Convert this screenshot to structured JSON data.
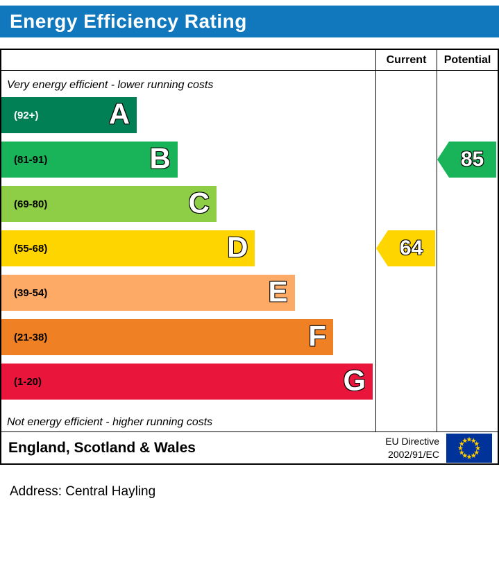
{
  "title": "Energy Efficiency Rating",
  "colors": {
    "header_bar": "#1278be",
    "eu_flag_blue": "#003399",
    "eu_flag_stars": "#ffcc00"
  },
  "columns": {
    "current": "Current",
    "potential": "Potential"
  },
  "captions": {
    "top": "Very energy efficient - lower running costs",
    "bottom": "Not energy efficient - higher running costs"
  },
  "bands": [
    {
      "letter": "A",
      "range": "(92+)",
      "color": "#008054",
      "width_pct": 36.2,
      "label_color": "#ffffff"
    },
    {
      "letter": "B",
      "range": "(81-91)",
      "color": "#19b459",
      "width_pct": 47.1,
      "label_color": "#000000"
    },
    {
      "letter": "C",
      "range": "(69-80)",
      "color": "#8dce46",
      "width_pct": 57.5,
      "label_color": "#000000"
    },
    {
      "letter": "D",
      "range": "(55-68)",
      "color": "#ffd500",
      "width_pct": 67.8,
      "label_color": "#000000"
    },
    {
      "letter": "E",
      "range": "(39-54)",
      "color": "#fcaa65",
      "width_pct": 78.4,
      "label_color": "#000000"
    },
    {
      "letter": "F",
      "range": "(21-38)",
      "color": "#ef8023",
      "width_pct": 88.7,
      "label_color": "#000000"
    },
    {
      "letter": "G",
      "range": "(1-20)",
      "color": "#e9153b",
      "width_pct": 99.3,
      "label_color": "#000000"
    }
  ],
  "ratings": {
    "current": {
      "value": "64",
      "band": "D",
      "color": "#ffd500"
    },
    "potential": {
      "value": "85",
      "band": "B",
      "color": "#19b459"
    }
  },
  "footer": {
    "region": "England, Scotland & Wales",
    "directive_line1": "EU Directive",
    "directive_line2": "2002/91/EC"
  },
  "address_label": "Address: Central Hayling",
  "chart_data": {
    "type": "bar",
    "title": "Energy Efficiency Rating",
    "categories": [
      "A (92+)",
      "B (81-91)",
      "C (69-80)",
      "D (55-68)",
      "E (39-54)",
      "F (21-38)",
      "G (1-20)"
    ],
    "band_colors": [
      "#008054",
      "#19b459",
      "#8dce46",
      "#ffd500",
      "#fcaa65",
      "#ef8023",
      "#e9153b"
    ],
    "band_ranges": [
      [
        92,
        100
      ],
      [
        81,
        91
      ],
      [
        69,
        80
      ],
      [
        55,
        68
      ],
      [
        39,
        54
      ],
      [
        21,
        38
      ],
      [
        1,
        20
      ]
    ],
    "markers": [
      {
        "name": "Current",
        "value": 64,
        "band": "D"
      },
      {
        "name": "Potential",
        "value": 85,
        "band": "B"
      }
    ],
    "top_caption": "Very energy efficient - lower running costs",
    "bottom_caption": "Not energy efficient - higher running costs",
    "region": "England, Scotland & Wales",
    "directive": "EU Directive 2002/91/EC"
  }
}
